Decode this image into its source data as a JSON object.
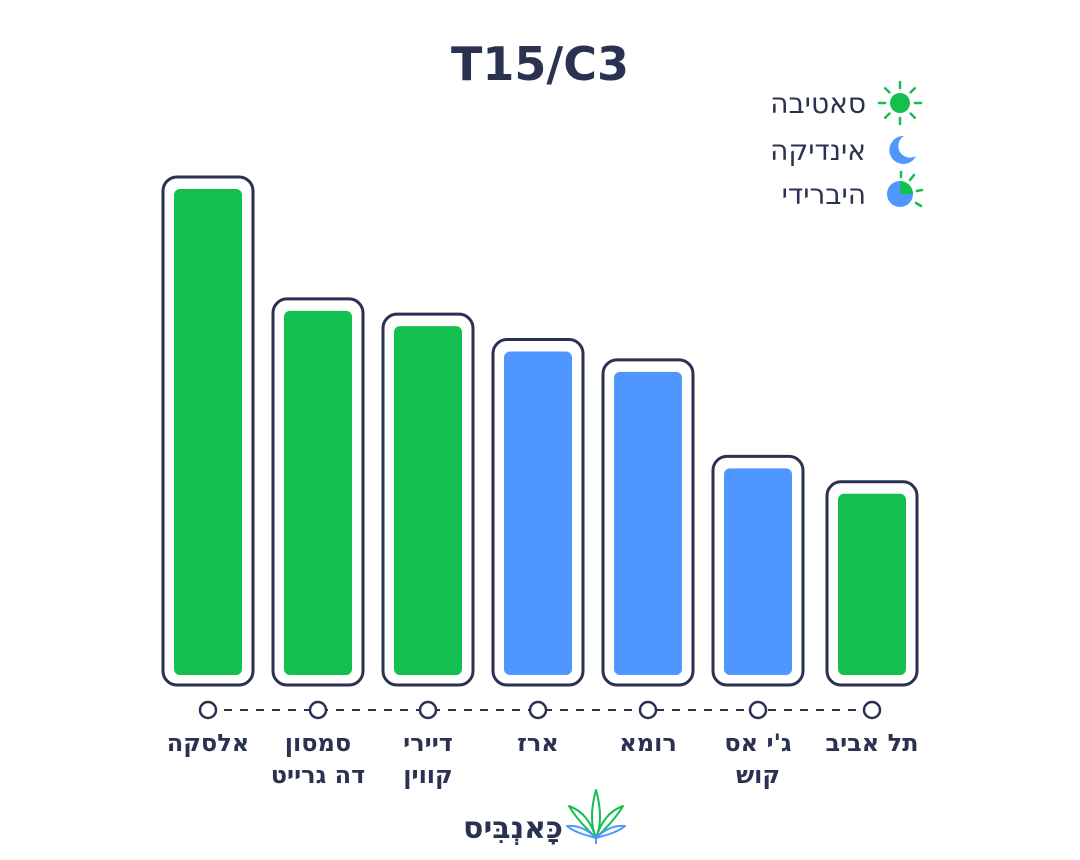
{
  "colors": {
    "sativa": "#13bf4f",
    "indica": "#5096ff",
    "outline": "#2b3150",
    "text": "#2b3150"
  },
  "legend": [
    {
      "key": "sativa",
      "label": "סאטיבה",
      "icon": "sun-icon"
    },
    {
      "key": "indica",
      "label": "אינדיקה",
      "icon": "moon-icon"
    },
    {
      "key": "hybrid",
      "label": "היברידי",
      "icon": "half-sun-moon-icon"
    }
  ],
  "brand": {
    "name": "כָּאנְבִּיס",
    "icon": "cannabis-leaf-icon"
  },
  "chart_data": {
    "type": "bar",
    "title": "T15/C3",
    "legend_position": "top-right",
    "grid": false,
    "ylim": [
      0,
      100
    ],
    "categories": [
      [
        "אלסקה"
      ],
      [
        "סמסון",
        "דה גרייט"
      ],
      [
        "דיירי",
        "קווין"
      ],
      [
        "ארז"
      ],
      [
        "רומא"
      ],
      [
        "ג'י אס",
        "קוש"
      ],
      [
        "תל אביב"
      ]
    ],
    "values": [
      100,
      76,
      73,
      68,
      64,
      45,
      40
    ],
    "strain_type": [
      "sativa",
      "sativa",
      "sativa",
      "indica",
      "indica",
      "indica",
      "sativa"
    ]
  }
}
